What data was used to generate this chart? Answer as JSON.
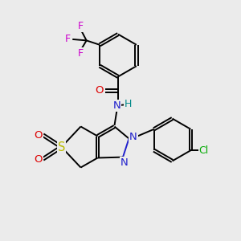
{
  "background_color": "#ebebeb",
  "figsize": [
    3.0,
    3.0
  ],
  "dpi": 100,
  "bond_color": "#000000",
  "bond_lw": 1.4,
  "colors": {
    "C": "#000000",
    "N": "#2020cc",
    "O": "#dd0000",
    "F": "#cc00cc",
    "S": "#bbbb00",
    "Cl": "#00aa00",
    "H_teal": "#008888"
  },
  "xlim": [
    0,
    10
  ],
  "ylim": [
    0,
    10
  ]
}
